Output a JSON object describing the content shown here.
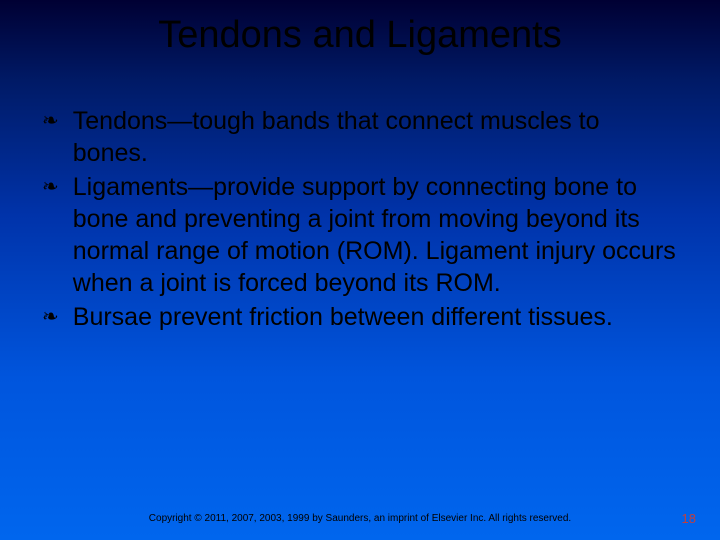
{
  "slide": {
    "title": "Tendons and Ligaments",
    "bullets": [
      "Tendons—tough bands that connect muscles to bones.",
      "Ligaments—provide support by connecting bone to bone and preventing a joint from moving beyond its normal range of motion (ROM). Ligament injury occurs when a joint is forced beyond its ROM.",
      "Bursae prevent friction between different tissues."
    ],
    "footer": "Copyright © 2011, 2007, 2003, 1999 by Saunders, an imprint of Elsevier Inc. All rights reserved.",
    "page_number": "18",
    "bullet_glyph": "❧",
    "colors": {
      "title": "#000000",
      "body": "#000000",
      "page_number": "#c04040"
    },
    "typography": {
      "title_fontsize": 38,
      "body_fontsize": 25,
      "footer_fontsize": 10,
      "pagenum_fontsize": 13
    }
  }
}
